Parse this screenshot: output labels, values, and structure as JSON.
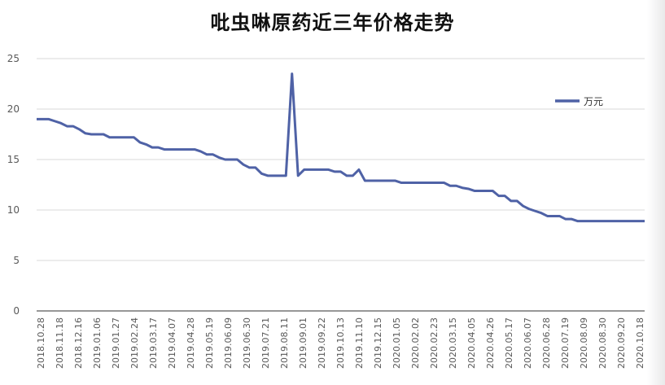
{
  "chart_data": {
    "type": "line",
    "title": "吡虫啉原药近三年价格走势",
    "xlabel": "",
    "ylabel": "",
    "ylim": [
      0,
      25
    ],
    "yticks": [
      0,
      5,
      10,
      15,
      20,
      25
    ],
    "grid": true,
    "legend_position": "right",
    "colors": {
      "series": "#4f62a6",
      "grid": "#d9d9d9",
      "axis": "#595959"
    },
    "x_tick_labels": [
      "2018.10.28",
      "2018.11.18",
      "2018.12.16",
      "2019.01.06",
      "2019.01.27",
      "2019.02.24",
      "2019.03.17",
      "2019.04.07",
      "2019.04.28",
      "2019.05.19",
      "2019.06.09",
      "2019.06.30",
      "2019.07.21",
      "2019.08.11",
      "2019.09.01",
      "2019.09.22",
      "2019.10.13",
      "2019.11.10",
      "2019.12.15",
      "2020.01.05",
      "2020.02.02",
      "2020.02.23",
      "2020.03.15",
      "2020.04.05",
      "2020.04.26",
      "2020.05.17",
      "2020.06.07",
      "2020.06.28",
      "2020.07.19",
      "2020.08.09",
      "2020.08.30",
      "2020.09.20",
      "2020.10.18"
    ],
    "series": [
      {
        "name": "万元",
        "values": [
          19,
          19,
          19,
          18.8,
          18.6,
          18.3,
          18.3,
          18,
          17.6,
          17.5,
          17.5,
          17.5,
          17.2,
          17.2,
          17.2,
          17.2,
          17.2,
          16.7,
          16.5,
          16.2,
          16.2,
          16,
          16,
          16,
          16,
          16,
          16,
          15.8,
          15.5,
          15.5,
          15.2,
          15,
          15,
          15,
          14.5,
          14.2,
          14.2,
          13.6,
          13.4,
          13.4,
          13.4,
          13.4,
          23.5,
          13.4,
          14,
          14,
          14,
          14,
          14,
          13.8,
          13.8,
          13.4,
          13.4,
          14,
          12.9,
          12.9,
          12.9,
          12.9,
          12.9,
          12.9,
          12.7,
          12.7,
          12.7,
          12.7,
          12.7,
          12.7,
          12.7,
          12.7,
          12.4,
          12.4,
          12.2,
          12.1,
          11.9,
          11.9,
          11.9,
          11.9,
          11.4,
          11.4,
          10.9,
          10.9,
          10.4,
          10.1,
          9.9,
          9.7,
          9.4,
          9.4,
          9.4,
          9.1,
          9.1,
          8.9,
          8.9,
          8.9,
          8.9,
          8.9,
          8.9,
          8.9,
          8.9,
          8.9,
          8.9,
          8.9,
          8.9
        ]
      }
    ]
  }
}
